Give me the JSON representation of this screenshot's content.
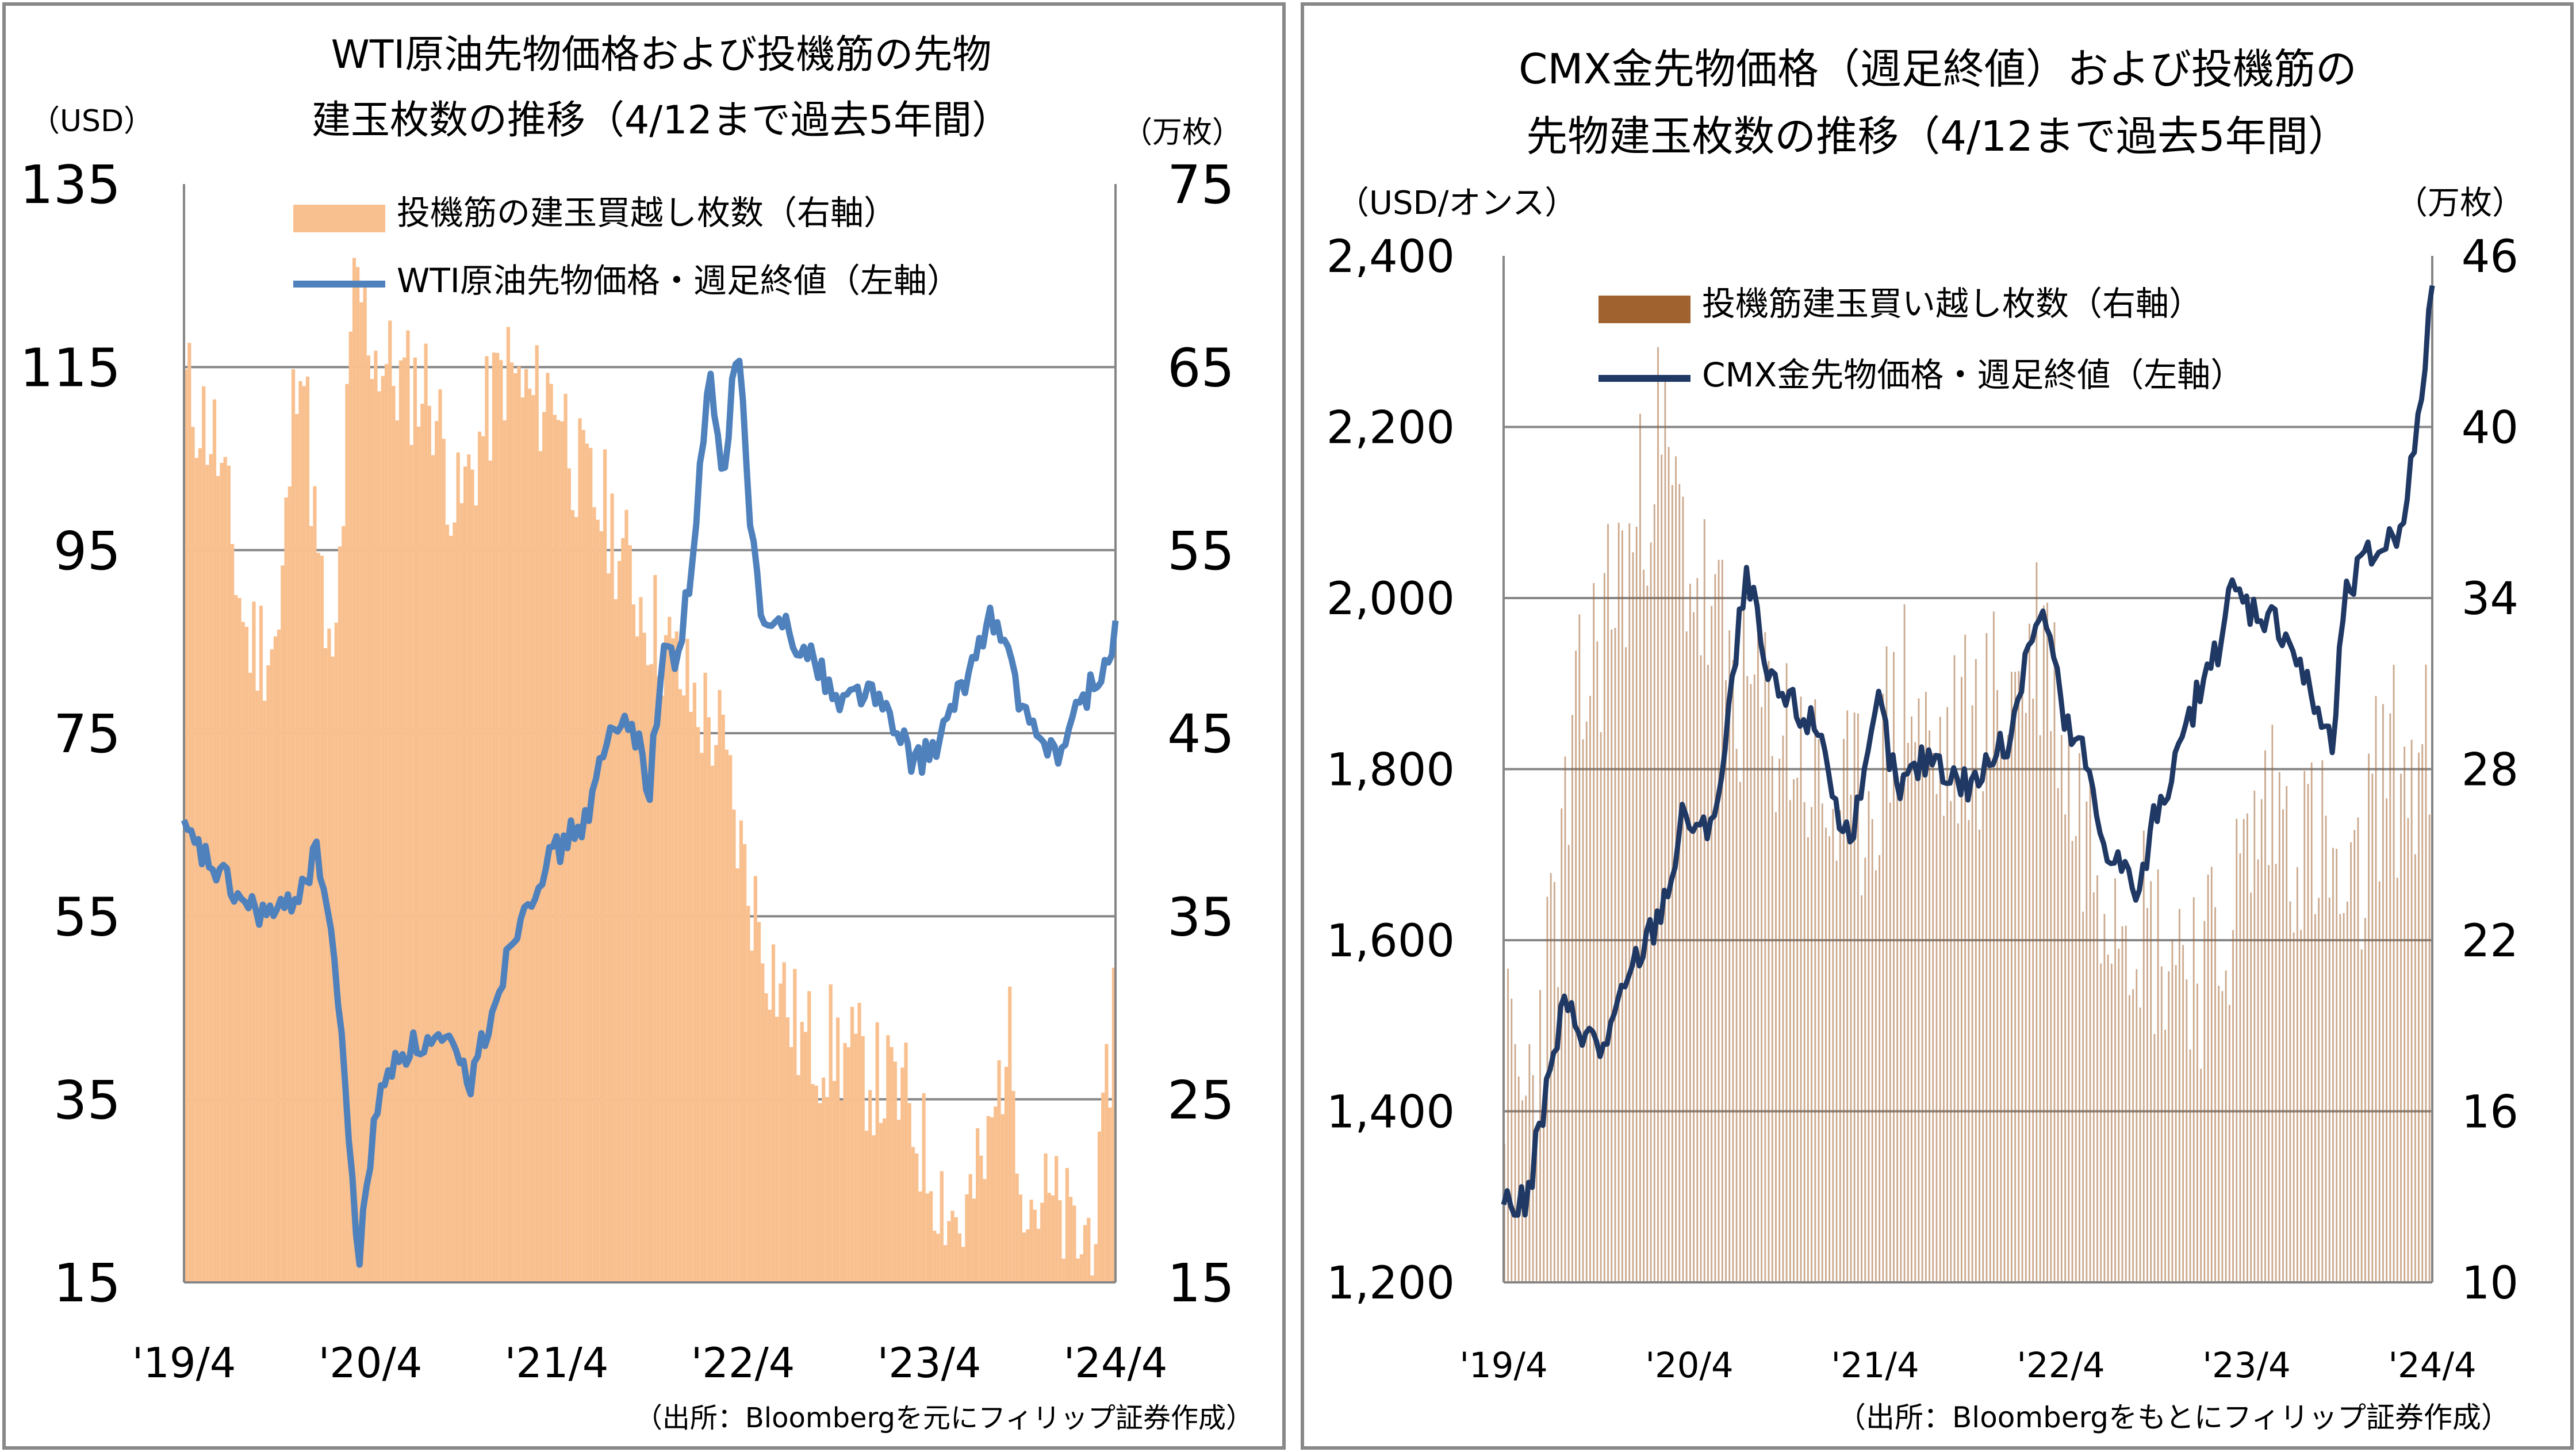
{
  "chart_data": [
    {
      "type": "bar+line",
      "title_line1": "WTI原油先物価格および投機筋の先物",
      "title_line2": "建玉枚数の推移（4/12まで過去5年間）",
      "y_left_unit": "（USD）",
      "y_right_unit": "（万枚）",
      "y_left_ticks": [
        "135",
        "115",
        "95",
        "75",
        "55",
        "35",
        "15"
      ],
      "y_right_ticks": [
        "75",
        "65",
        "55",
        "45",
        "35",
        "25",
        "15"
      ],
      "x_ticks": [
        "'19/4",
        "'20/4",
        "'21/4",
        "'22/4",
        "'23/4",
        "'24/4"
      ],
      "ylim_left": [
        15,
        135
      ],
      "ylim_right": [
        15,
        75
      ],
      "legend": [
        "投機筋の建玉買越し枚数（右軸）",
        "WTI原油先物価格・週足終値（左軸）"
      ],
      "source": "（出所：Bloombergを元にフィリップ証券作成）",
      "bar_color": "#F9C08F",
      "line_color": "#4F81BD",
      "bar_series": {
        "name": "投機筋の建玉買越し枚数（右軸）",
        "x": [
          2019.28,
          2019.45,
          2019.62,
          2019.79,
          2019.9,
          2020.0,
          2020.08,
          2020.2,
          2020.3,
          2020.45,
          2020.6,
          2020.75,
          2020.9,
          2021.0,
          2021.15,
          2021.28,
          2021.4,
          2021.55,
          2021.7,
          2021.85,
          2022.0,
          2022.15,
          2022.3,
          2022.45,
          2022.6,
          2022.75,
          2022.9,
          2023.0,
          2023.15,
          2023.3,
          2023.45,
          2023.6,
          2023.7,
          2023.8,
          2023.95,
          2024.1,
          2024.2,
          2024.28
        ],
        "values": [
          64,
          61,
          50,
          50,
          68,
          54,
          47,
          70,
          66,
          64,
          64,
          57,
          62,
          65,
          63,
          64,
          59,
          57,
          53,
          50,
          47,
          45,
          37,
          32,
          28,
          28,
          27,
          26,
          25,
          21,
          18,
          22,
          29,
          20,
          19,
          17,
          20,
          32
        ]
      },
      "line_series": {
        "name": "WTI原油先物価格・週足終値（左軸）",
        "x": [
          2019.28,
          2019.45,
          2019.62,
          2019.79,
          2019.9,
          2020.0,
          2020.08,
          2020.15,
          2020.22,
          2020.3,
          2020.42,
          2020.55,
          2020.68,
          2020.82,
          2020.95,
          2021.08,
          2021.2,
          2021.32,
          2021.45,
          2021.55,
          2021.68,
          2021.78,
          2021.85,
          2021.92,
          2022.0,
          2022.1,
          2022.18,
          2022.25,
          2022.32,
          2022.4,
          2022.5,
          2022.6,
          2022.7,
          2022.8,
          2022.9,
          2023.0,
          2023.1,
          2023.2,
          2023.3,
          2023.4,
          2023.5,
          2023.6,
          2023.68,
          2023.75,
          2023.82,
          2023.9,
          2024.0,
          2024.1,
          2024.2,
          2024.28
        ],
        "values": [
          64,
          60,
          56,
          55,
          58,
          62,
          52,
          35,
          17,
          33,
          40,
          41,
          41,
          37,
          46,
          55,
          60,
          63,
          66,
          74,
          77,
          69,
          84,
          83,
          92,
          114,
          102,
          119,
          98,
          85,
          88,
          84,
          82,
          78,
          80,
          79,
          75,
          72,
          73,
          77,
          82,
          88,
          85,
          80,
          75,
          74,
          73,
          79,
          81,
          86
        ]
      }
    },
    {
      "type": "bar+line",
      "title_line1": "CMX金先物価格（週足終値）および投機筋の",
      "title_line2": "先物建玉枚数の推移（4/12まで過去5年間）",
      "y_left_unit": "（USD/オンス）",
      "y_right_unit": "（万枚）",
      "y_left_ticks": [
        "2,400",
        "2,200",
        "2,000",
        "1,800",
        "1,600",
        "1,400",
        "1,200"
      ],
      "y_right_ticks": [
        "46",
        "40",
        "34",
        "28",
        "22",
        "16",
        "10"
      ],
      "x_ticks": [
        "'19/4",
        "'20/4",
        "'21/4",
        "'22/4",
        "'23/4",
        "'24/4"
      ],
      "ylim_left": [
        1200,
        2400
      ],
      "ylim_right": [
        10,
        46
      ],
      "legend": [
        "投機筋建玉買い越し枚数（右軸）",
        "CMX金先物価格・週足終値（左軸）"
      ],
      "source": "（出所：Bloombergをもとにフィリップ証券作成）",
      "bar_color": "#A0632F",
      "line_color": "#1F3864",
      "bar_series": {
        "name": "投機筋建玉買い越し枚数（右軸）",
        "x": [
          2019.28,
          2019.4,
          2019.55,
          2019.7,
          2019.85,
          2020.0,
          2020.1,
          2020.25,
          2020.4,
          2020.55,
          2020.7,
          2020.85,
          2021.0,
          2021.15,
          2021.3,
          2021.45,
          2021.6,
          2021.75,
          2021.9,
          2022.05,
          2022.2,
          2022.35,
          2022.5,
          2022.65,
          2022.8,
          2022.95,
          2023.1,
          2023.25,
          2023.4,
          2023.55,
          2023.7,
          2023.85,
          2024.0,
          2024.15,
          2024.28
        ],
        "values": [
          18,
          16,
          22,
          30,
          34,
          36,
          40,
          36,
          33,
          31,
          30,
          29,
          27,
          26,
          28,
          31,
          28,
          29,
          30,
          31,
          33,
          27,
          25,
          24,
          22,
          22,
          21,
          24,
          27,
          26,
          25,
          22,
          28,
          28,
          28
        ]
      },
      "line_series": {
        "name": "CMX金先物価格・週足終値（左軸）",
        "x": [
          2019.28,
          2019.4,
          2019.5,
          2019.6,
          2019.7,
          2019.8,
          2019.9,
          2020.0,
          2020.1,
          2020.2,
          2020.25,
          2020.35,
          2020.45,
          2020.55,
          2020.6,
          2020.7,
          2020.8,
          2020.9,
          2021.0,
          2021.1,
          2021.2,
          2021.3,
          2021.4,
          2021.5,
          2021.6,
          2021.7,
          2021.8,
          2021.9,
          2022.0,
          2022.1,
          2022.2,
          2022.3,
          2022.4,
          2022.5,
          2022.6,
          2022.7,
          2022.8,
          2022.9,
          2023.0,
          2023.1,
          2023.2,
          2023.3,
          2023.4,
          2023.5,
          2023.6,
          2023.7,
          2023.75,
          2023.8,
          2023.9,
          2024.0,
          2024.1,
          2024.2,
          2024.28
        ],
        "values": [
          1295,
          1290,
          1410,
          1520,
          1500,
          1470,
          1520,
          1580,
          1620,
          1690,
          1750,
          1720,
          1780,
          1970,
          2030,
          1900,
          1880,
          1860,
          1840,
          1720,
          1750,
          1880,
          1770,
          1800,
          1820,
          1790,
          1780,
          1810,
          1830,
          1950,
          1980,
          1850,
          1820,
          1720,
          1690,
          1650,
          1760,
          1800,
          1880,
          1920,
          2010,
          1990,
          1980,
          1960,
          1900,
          1850,
          1820,
          1990,
          2040,
          2060,
          2080,
          2190,
          2370
        ]
      }
    }
  ]
}
